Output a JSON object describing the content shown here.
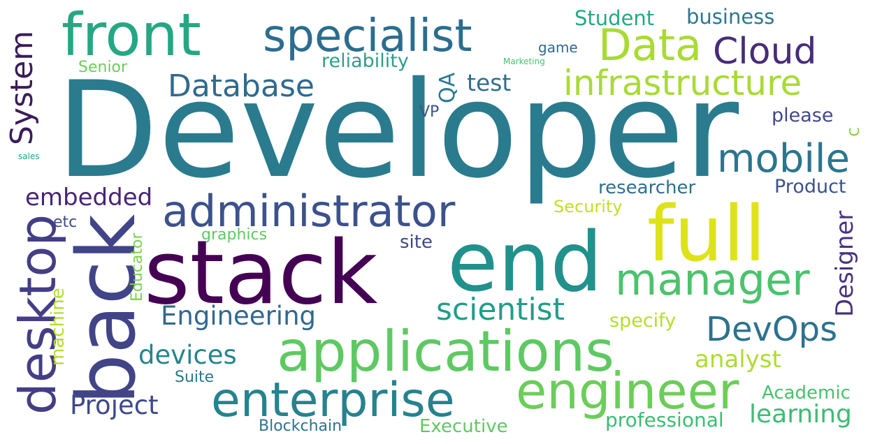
{
  "words": {
    "developer": {
      "text": "Developer",
      "color": "#2a7b8e"
    },
    "front": {
      "text": "front",
      "color": "#26a784"
    },
    "specialist": {
      "text": "specialist",
      "color": "#2c6d8e"
    },
    "data": {
      "text": "Data",
      "color": "#a8db34"
    },
    "cloud": {
      "text": "Cloud",
      "color": "#472c7a"
    },
    "infrastructure": {
      "text": "infrastructure",
      "color": "#a8db34"
    },
    "database": {
      "text": "Database",
      "color": "#2f6b8e"
    },
    "student": {
      "text": "Student",
      "color": "#23a983"
    },
    "business": {
      "text": "business",
      "color": "#2b788e"
    },
    "game": {
      "text": "game",
      "color": "#31688e"
    },
    "reliability": {
      "text": "reliability",
      "color": "#2f9e88"
    },
    "marketing": {
      "text": "Marketing",
      "color": "#4ac16d"
    },
    "senior": {
      "text": "Senior",
      "color": "#6ccd5a"
    },
    "test": {
      "text": "test",
      "color": "#2e6e8e"
    },
    "qa": {
      "text": "QA",
      "color": "#2a788e"
    },
    "vp": {
      "text": "VP",
      "color": "#3b528b"
    },
    "please": {
      "text": "please",
      "color": "#3f4889"
    },
    "c": {
      "text": "c",
      "color": "#8bd646"
    },
    "system": {
      "text": "System",
      "color": "#3b1c5a"
    },
    "sales": {
      "text": "sales",
      "color": "#20a486"
    },
    "mobile": {
      "text": "mobile",
      "color": "#2b758e"
    },
    "embedded": {
      "text": "embedded",
      "color": "#482475"
    },
    "administrator": {
      "text": "administrator",
      "color": "#3b528b"
    },
    "researcher": {
      "text": "researcher",
      "color": "#2d708e"
    },
    "product": {
      "text": "Product",
      "color": "#3b528b"
    },
    "security": {
      "text": "Security",
      "color": "#c2df23"
    },
    "etc": {
      "text": "etc",
      "color": "#3e4a89"
    },
    "graphics": {
      "text": "graphics",
      "color": "#5ec962"
    },
    "site": {
      "text": "site",
      "color": "#3e4989"
    },
    "back": {
      "text": "back",
      "color": "#414487"
    },
    "desktop": {
      "text": "desktop",
      "color": "#433e85"
    },
    "stack": {
      "text": "stack",
      "color": "#440154"
    },
    "end": {
      "text": "end",
      "color": "#21918c"
    },
    "full": {
      "text": "full",
      "color": "#dde318"
    },
    "manager": {
      "text": "manager",
      "color": "#4cc26c"
    },
    "designer": {
      "text": "Designer",
      "color": "#46327e"
    },
    "educator": {
      "text": "Educator",
      "color": "#7ad151"
    },
    "machine": {
      "text": "machine",
      "color": "#b5de2b"
    },
    "engineering": {
      "text": "Engineering",
      "color": "#31688e"
    },
    "scientist": {
      "text": "scientist",
      "color": "#1f9e89"
    },
    "specify": {
      "text": "specify",
      "color": "#b5de2b"
    },
    "devops": {
      "text": "DevOps",
      "color": "#2c728e"
    },
    "applications": {
      "text": "applications",
      "color": "#5ec962"
    },
    "devices": {
      "text": "devices",
      "color": "#25858e"
    },
    "analyst": {
      "text": "analyst",
      "color": "#addc30"
    },
    "suite": {
      "text": "Suite",
      "color": "#2a788e"
    },
    "engineer": {
      "text": "engineer",
      "color": "#6ccd5a"
    },
    "enterprise": {
      "text": "enterprise",
      "color": "#26828e"
    },
    "project": {
      "text": "Project",
      "color": "#3e4989"
    },
    "academic": {
      "text": "Academic",
      "color": "#4ac16d"
    },
    "blockchain": {
      "text": "Blockchain",
      "color": "#2c738e"
    },
    "executive": {
      "text": "Executive",
      "color": "#5ec962"
    },
    "professional": {
      "text": "professional",
      "color": "#3dbc74"
    },
    "learning": {
      "text": "learning",
      "color": "#3dbc74"
    }
  }
}
